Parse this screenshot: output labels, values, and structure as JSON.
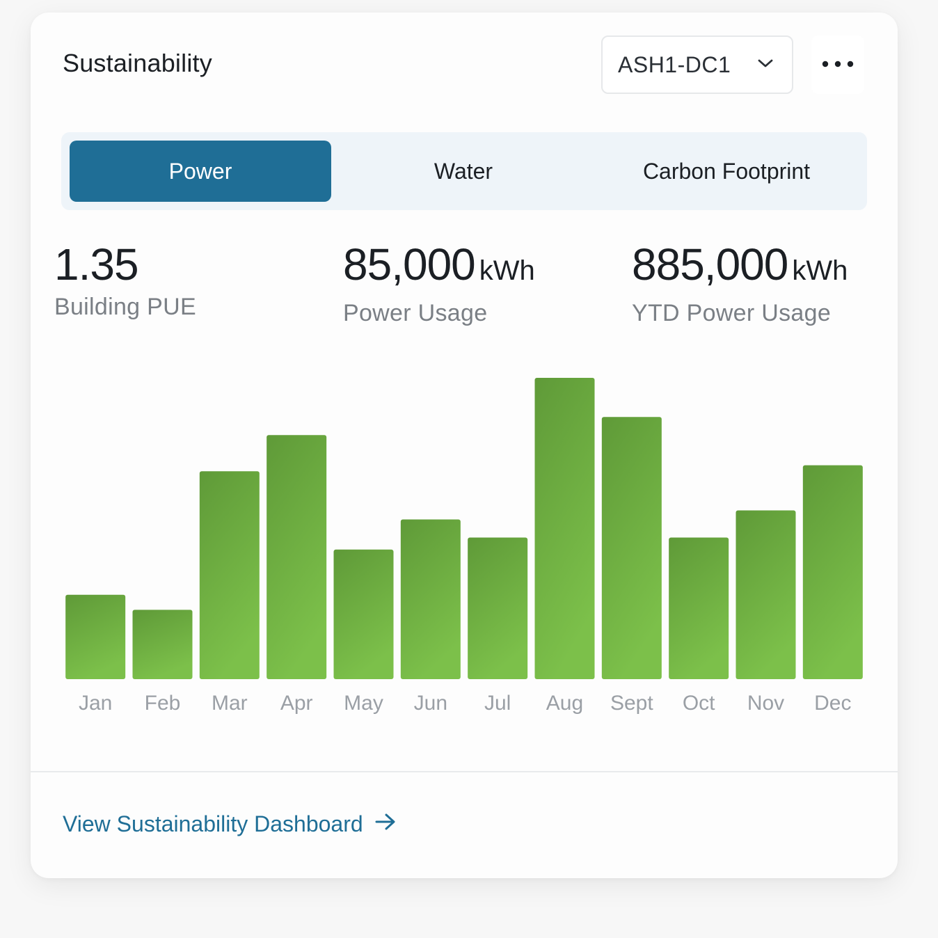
{
  "card": {
    "title": "Sustainability",
    "site_select": {
      "selected": "ASH1-DC1",
      "icon": "chevron-down-icon"
    },
    "more_icon": "more-horizontal-icon"
  },
  "tabs": [
    {
      "label": "Power",
      "active": true
    },
    {
      "label": "Water",
      "active": false
    },
    {
      "label": "Carbon Footprint",
      "active": false
    }
  ],
  "stats": [
    {
      "value": "1.35",
      "unit": "",
      "label": "Building PUE"
    },
    {
      "value": "85,000",
      "unit": "kWh",
      "label": "Power Usage"
    },
    {
      "value": "885,000",
      "unit": "kWh",
      "label": "YTD Power Usage"
    }
  ],
  "colors": {
    "accent": "#1f6e96",
    "bar_top": "#5f9a38",
    "bar_bottom": "#7cc04a",
    "axis_label": "#9a9fa5"
  },
  "chart_data": {
    "type": "bar",
    "categories": [
      "Jan",
      "Feb",
      "Mar",
      "Apr",
      "May",
      "Jun",
      "Jul",
      "Aug",
      "Sept",
      "Oct",
      "Nov",
      "Dec"
    ],
    "values": [
      28,
      23,
      69,
      81,
      43,
      53,
      47,
      100,
      87,
      47,
      56,
      71
    ],
    "ylim": [
      0,
      100
    ],
    "grid": false,
    "legend": "none"
  },
  "footer": {
    "link_label": "View Sustainability Dashboard",
    "link_icon": "arrow-right-icon"
  }
}
